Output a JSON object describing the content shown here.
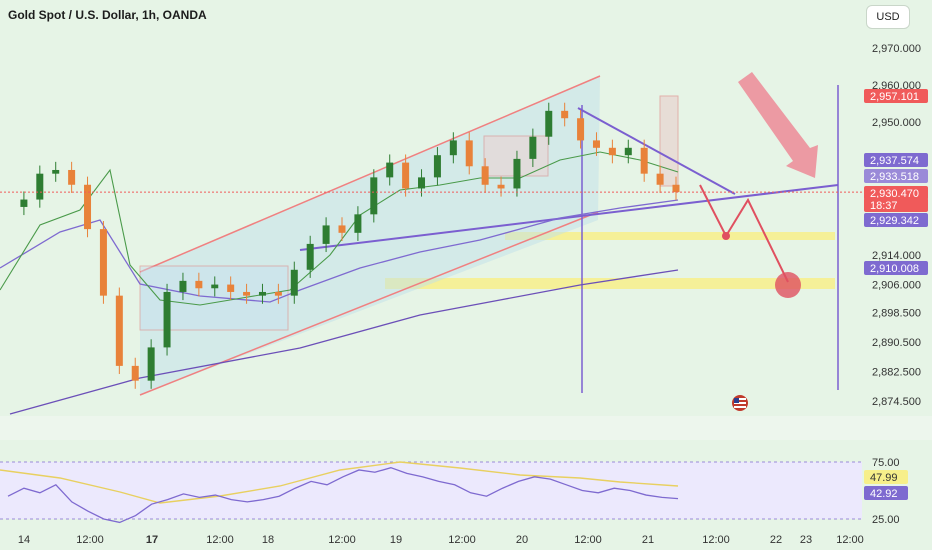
{
  "title": "Gold Spot / U.S. Dollar, 1h, OANDA",
  "currency_button": "USD",
  "colors": {
    "background": "#e6f4e6",
    "up": "#2e7d32",
    "down": "#e8823a",
    "channel": "#f08080",
    "trend": "#7b5fd0",
    "zone": "#f7ef8a",
    "projection": "#e05060"
  },
  "chart_data": [
    {
      "type": "candlestick",
      "title": "Gold Spot / U.S. Dollar, 1h, OANDA",
      "y_ticks": [
        "2,970.000",
        "2,960.000",
        "2,950.000",
        "2,914.000",
        "2,906.000",
        "2,898.500",
        "2,890.500",
        "2,882.500",
        "2,874.500"
      ],
      "x_ticks": [
        "14",
        "12:00",
        "17",
        "12:00",
        "18",
        "12:00",
        "19",
        "12:00",
        "20",
        "12:00",
        "21",
        "12:00",
        "22",
        "23",
        "12:00"
      ],
      "price_labels": [
        {
          "value": "2,957.101",
          "color": "#f05a5a"
        },
        {
          "value": "2,937.574",
          "color": "#7e6ad0"
        },
        {
          "value": "2,933.518",
          "color": "#9a8ad8"
        },
        {
          "value": "2,930.470",
          "color": "#f05a5a"
        },
        {
          "value": "18:37",
          "color": "#f05a5a"
        },
        {
          "value": "2,929.342",
          "color": "#7e6ad0"
        },
        {
          "value": "2,910.008",
          "color": "#7e6ad0"
        }
      ],
      "price_series": [
        2927,
        2929,
        2936,
        2937,
        2933,
        2921,
        2903,
        2884,
        2880,
        2889,
        2904,
        2907,
        2905,
        2906,
        2904,
        2903,
        2904,
        2903,
        2910,
        2917,
        2922,
        2920,
        2925,
        2935,
        2939,
        2932,
        2935,
        2941,
        2945,
        2938,
        2933,
        2932,
        2940,
        2946,
        2953,
        2951,
        2945,
        2943,
        2941,
        2943,
        2936,
        2933,
        2931
      ]
    },
    {
      "type": "line",
      "title": "RSI",
      "y_ticks": [
        "75.00",
        "25.00"
      ],
      "last_values": [
        "47.99",
        "42.92"
      ],
      "values": [
        45,
        52,
        48,
        55,
        40,
        32,
        25,
        22,
        28,
        38,
        42,
        47,
        44,
        46,
        42,
        40,
        42,
        45,
        52,
        58,
        55,
        62,
        68,
        66,
        70,
        65,
        62,
        58,
        55,
        48,
        45,
        52,
        58,
        62,
        60,
        55,
        50,
        48,
        52,
        50,
        46,
        44,
        42.9
      ]
    }
  ]
}
